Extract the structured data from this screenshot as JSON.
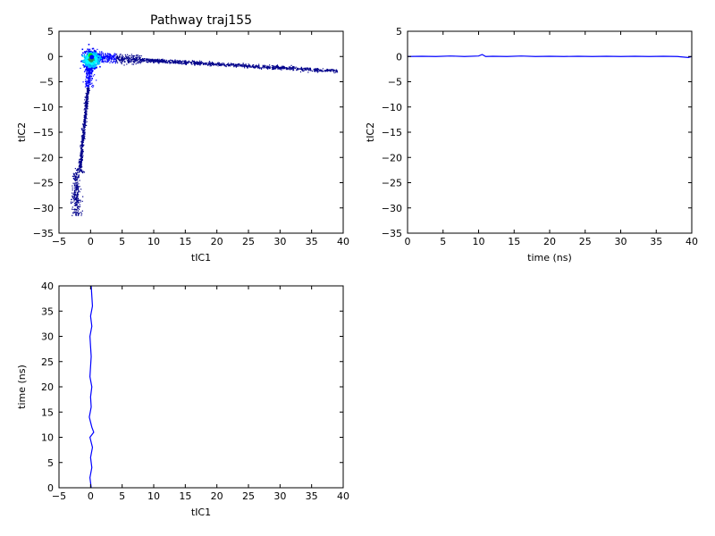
{
  "chart_data": [
    {
      "type": "scatter",
      "title": "Pathway traj155",
      "xlabel": "tIC1",
      "ylabel": "tIC2",
      "xlim": [
        -5,
        40
      ],
      "ylim": [
        -35,
        5
      ],
      "xticks": [
        -5,
        0,
        5,
        10,
        15,
        20,
        25,
        30,
        35,
        40
      ],
      "yticks": [
        -35,
        -30,
        -25,
        -20,
        -15,
        -10,
        -5,
        0,
        5
      ],
      "grid": false,
      "background_density": {
        "description_colors": [
          "#00008b",
          "#0000ff",
          "#00bfff",
          "#00ffff",
          "#2e8b57"
        ],
        "horizontal_arm": {
          "x": [
            -0.5,
            39
          ],
          "y_start": 0,
          "y_end": -2.8
        },
        "vertical_arm": {
          "x_start": 0,
          "x_end": -2.5,
          "y": [
            1,
            -31.5
          ]
        },
        "dense_core": {
          "x": 0,
          "y": -0.5
        }
      },
      "highlight_points": [
        {
          "x": 0.0,
          "y": 0.2,
          "color": "#00ff00"
        },
        {
          "x": 0.2,
          "y": -0.1,
          "color": "#0000ff"
        }
      ]
    },
    {
      "type": "line",
      "title": "",
      "xlabel": "time (ns)",
      "ylabel": "tIC2",
      "xlim": [
        0,
        40
      ],
      "ylim": [
        -35,
        5
      ],
      "xticks": [
        0,
        5,
        10,
        15,
        20,
        25,
        30,
        35,
        40
      ],
      "yticks": [
        -35,
        -30,
        -25,
        -20,
        -15,
        -10,
        -5,
        0,
        5
      ],
      "series": [
        {
          "color": "#0000ff",
          "x": [
            0,
            2,
            4,
            6,
            8,
            10,
            10.5,
            11,
            12,
            14,
            16,
            18,
            20,
            22,
            24,
            26,
            28,
            30,
            32,
            34,
            36,
            38,
            39.5,
            40
          ],
          "y": [
            0.0,
            0.05,
            0.0,
            0.1,
            0.0,
            0.1,
            0.4,
            0.0,
            0.05,
            0.0,
            0.1,
            0.0,
            0.05,
            0.0,
            0.05,
            0.0,
            0.05,
            0.0,
            0.05,
            0.0,
            0.05,
            0.0,
            -0.2,
            0.0
          ]
        }
      ]
    },
    {
      "type": "line",
      "title": "",
      "xlabel": "tIC1",
      "ylabel": "time (ns)",
      "xlim": [
        -5,
        40
      ],
      "ylim": [
        0,
        40
      ],
      "xticks": [
        -5,
        0,
        5,
        10,
        15,
        20,
        25,
        30,
        35,
        40
      ],
      "yticks": [
        0,
        5,
        10,
        15,
        20,
        25,
        30,
        35,
        40
      ],
      "series": [
        {
          "color": "#0000ff",
          "x": [
            0.1,
            -0.1,
            0.2,
            0.0,
            0.3,
            0.1,
            -0.1,
            0.5,
            0.2,
            0.0,
            -0.2,
            0.1,
            0.0,
            0.2,
            -0.1,
            0.0,
            0.1,
            0.0,
            -0.1,
            0.2,
            0.0,
            0.3,
            0.1
          ],
          "y": [
            0,
            2,
            4,
            6,
            8,
            9,
            10,
            11,
            12,
            13,
            14,
            16,
            18,
            20,
            22,
            24,
            26,
            28,
            30,
            32,
            34,
            36,
            40
          ]
        }
      ]
    }
  ]
}
